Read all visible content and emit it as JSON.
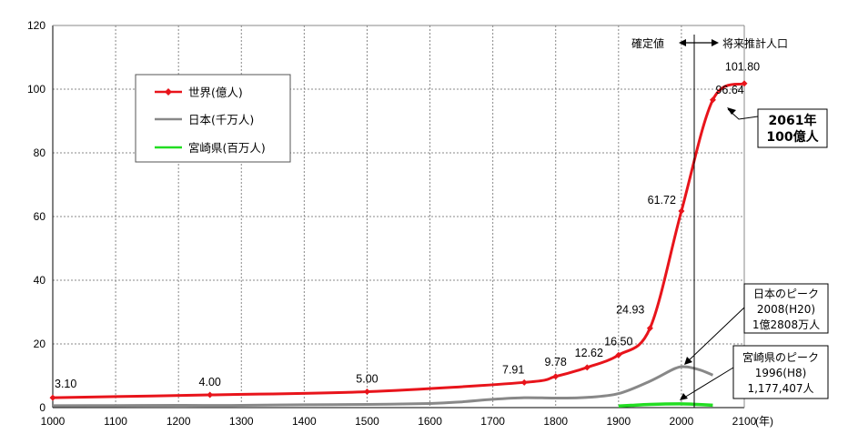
{
  "chart_data": {
    "type": "line",
    "x_unit": "(年)",
    "xlim": [
      1000,
      2100
    ],
    "ylim": [
      0,
      120
    ],
    "x_ticks": [
      "1000",
      "1100",
      "1200",
      "1300",
      "1400",
      "1500",
      "1600",
      "1700",
      "1800",
      "1900",
      "2000",
      "2100"
    ],
    "y_ticks": [
      "0",
      "20",
      "40",
      "60",
      "80",
      "100",
      "120"
    ],
    "grid": true,
    "legend_position": "top-left",
    "series": [
      {
        "name": "世界(億人)",
        "color": "#e8141b",
        "marker": "diamond",
        "x": [
          1000,
          1250,
          1500,
          1750,
          1800,
          1850,
          1900,
          1950,
          2000,
          2050,
          2100
        ],
        "y": [
          3.1,
          4.0,
          5.0,
          7.91,
          9.78,
          12.62,
          16.5,
          24.93,
          61.72,
          96.64,
          101.8
        ],
        "labels": [
          "3.10",
          "4.00",
          "5.00",
          "7.91",
          "9.78",
          "12.62",
          "16.50",
          "24.93",
          "61.72",
          "96.64",
          "101.80"
        ]
      },
      {
        "name": "日本(千万人)",
        "color": "#888888",
        "x": [
          1000,
          1100,
          1200,
          1300,
          1400,
          1500,
          1600,
          1650,
          1700,
          1750,
          1800,
          1850,
          1900,
          1950,
          1990,
          2008,
          2030,
          2050
        ],
        "y": [
          0.6,
          0.65,
          0.7,
          0.7,
          0.9,
          1.0,
          1.3,
          1.8,
          2.6,
          3.1,
          3.0,
          3.2,
          4.4,
          8.3,
          12.3,
          12.8,
          11.8,
          10.2
        ]
      },
      {
        "name": "宮崎県(百万人)",
        "color": "#22dd22",
        "x": [
          1900,
          1920,
          1950,
          1996,
          2020,
          2050
        ],
        "y": [
          0.5,
          0.7,
          1.0,
          1.18,
          1.05,
          0.75
        ]
      }
    ],
    "boundary": {
      "left_label": "確定値",
      "right_label": "将来推計人口"
    },
    "annotations": {
      "world_100": [
        "2061年",
        "100億人"
      ],
      "japan_peak": [
        "日本のピーク",
        "2008(H20)",
        "1億2808万人"
      ],
      "miyazaki_peak": [
        "宮崎県のピーク",
        "1996(H8)",
        "1,177,407人"
      ]
    }
  }
}
